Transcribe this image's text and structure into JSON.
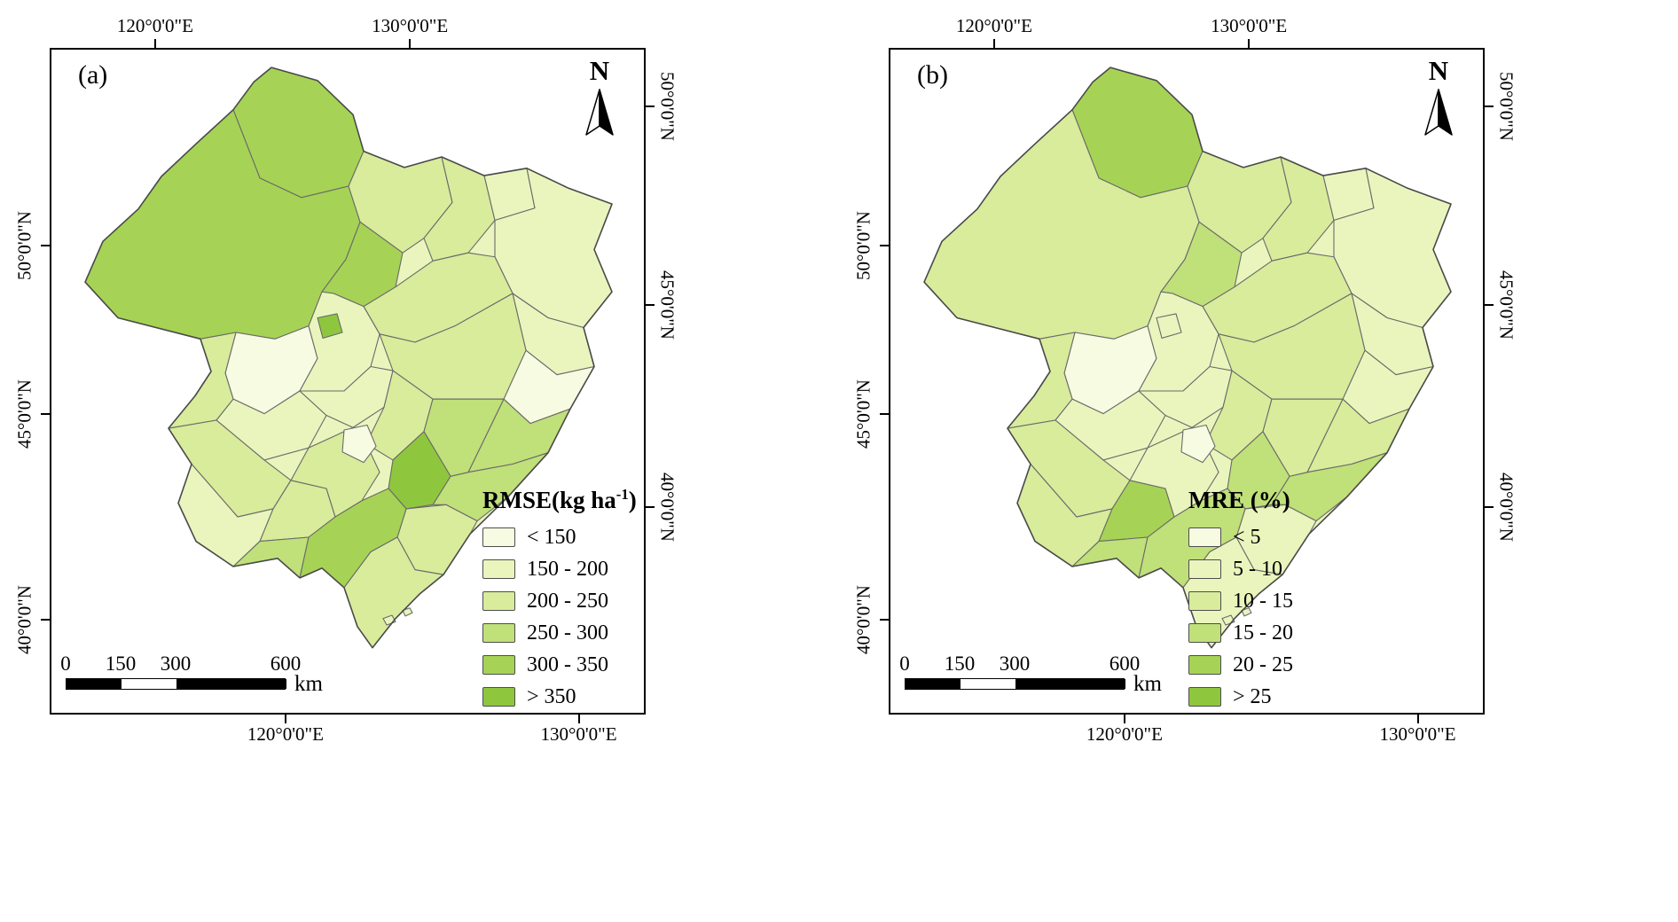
{
  "figure": {
    "background": "#ffffff",
    "north_label": "N",
    "color_ramp": [
      "#f7fbe1",
      "#e9f5bd",
      "#d8ec9c",
      "#c0e079",
      "#a6d355",
      "#8ec73d"
    ],
    "map_region_border": "#6a6a6a",
    "map_outline": "#4a4a4a",
    "axes": {
      "top": [
        {
          "label": "120°0'0\"E",
          "pct": 17.5
        },
        {
          "label": "130°0'0\"E",
          "pct": 60.5
        }
      ],
      "bottom": [
        {
          "label": "120°0'0\"E",
          "pct": 39.5
        },
        {
          "label": "130°0'0\"E",
          "pct": 89.0
        }
      ],
      "left": [
        {
          "label": "50°0'0\"N",
          "pct": 29.5
        },
        {
          "label": "45°0'0\"N",
          "pct": 55.0
        },
        {
          "label": "40°0'0\"N",
          "pct": 86.0
        }
      ],
      "right": [
        {
          "label": "50°0'0\"N",
          "pct": 8.5
        },
        {
          "label": "45°0'0\"N",
          "pct": 38.5
        },
        {
          "label": "40°0'0\"N",
          "pct": 69.0
        }
      ]
    },
    "scalebar": {
      "ticks": [
        "0",
        "150",
        "300",
        "600"
      ],
      "unit": "km"
    },
    "panels": [
      {
        "label": "(a)",
        "legend": {
          "title_pre": "RMSE(kg ha",
          "title_sup": "-1",
          "title_post": ")",
          "labels": [
            "< 150",
            "150 - 200",
            "200 - 250",
            "250 - 300",
            "300 - 350",
            "> 350"
          ]
        },
        "region_classes": [
          4,
          4,
          2,
          4,
          2,
          1,
          1,
          1,
          0,
          3,
          3,
          2,
          2,
          0,
          1,
          5,
          2,
          1,
          1,
          2,
          2,
          1,
          2,
          3,
          2,
          0,
          3,
          5,
          2,
          4,
          2,
          1,
          1
        ]
      },
      {
        "label": "(b)",
        "legend": {
          "title_pre": "MRE (%)",
          "title_sup": "",
          "title_post": "",
          "labels": [
            "< 5",
            "5 - 10",
            "10 - 15",
            "15 - 20",
            "20 - 25",
            "> 25"
          ]
        },
        "region_classes": [
          4,
          2,
          2,
          3,
          2,
          1,
          1,
          1,
          1,
          2,
          3,
          2,
          2,
          0,
          1,
          1,
          2,
          1,
          1,
          2,
          2,
          2,
          4,
          3,
          1,
          0,
          2,
          3,
          1,
          3,
          1,
          1,
          1
        ]
      }
    ]
  }
}
